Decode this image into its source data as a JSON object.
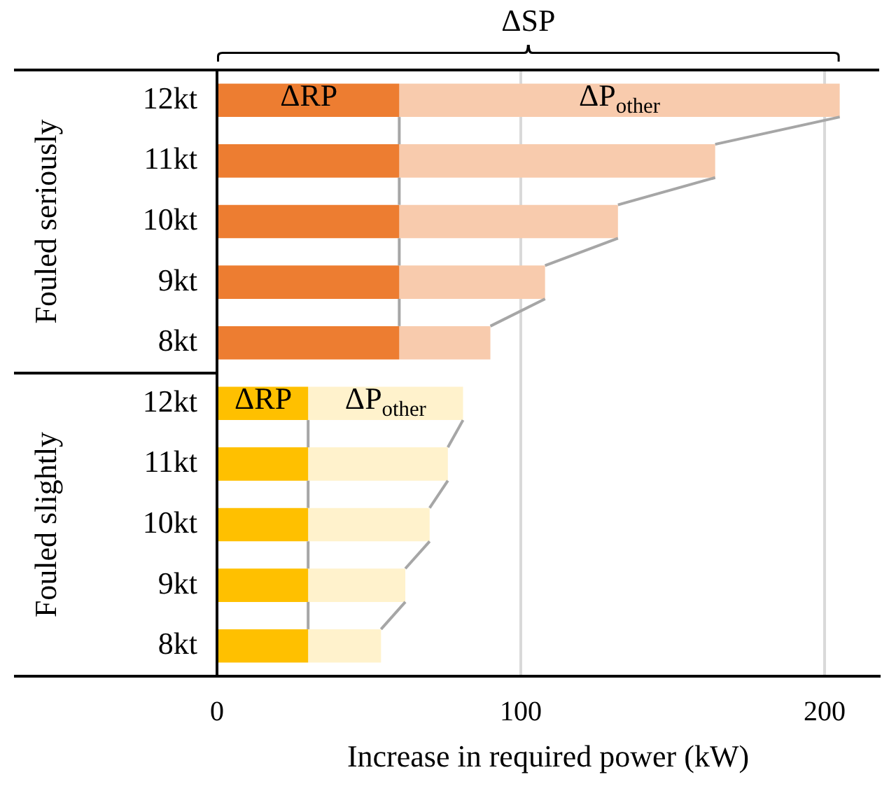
{
  "chart_data": {
    "type": "bar",
    "orientation": "horizontal",
    "stacked": true,
    "categories": [
      "12kt",
      "11kt",
      "10kt",
      "9kt",
      "8kt",
      "12kt",
      "11kt",
      "10kt",
      "9kt",
      "8kt"
    ],
    "series": [
      {
        "name": "ΔRP",
        "colors": [
          "#ed7d31",
          "#ed7d31",
          "#ed7d31",
          "#ed7d31",
          "#ed7d31",
          "#ffc000",
          "#ffc000",
          "#ffc000",
          "#ffc000",
          "#ffc000"
        ],
        "values": [
          60,
          60,
          60,
          60,
          60,
          30,
          30,
          30,
          30,
          30
        ]
      },
      {
        "name": "ΔP$_{other}$",
        "colors": [
          "#f8cbad",
          "#f8cbad",
          "#f8cbad",
          "#f8cbad",
          "#f8cbad",
          "#fff2cc",
          "#fff2cc",
          "#fff2cc",
          "#fff2cc",
          "#fff2cc"
        ],
        "values": [
          145,
          104,
          72,
          48,
          30,
          51,
          46,
          40,
          32,
          24
        ]
      }
    ],
    "xlabel": "Increase in required power (kW)",
    "xlim": [
      0,
      218
    ],
    "xticks": [
      0,
      100,
      200
    ],
    "grid": "x",
    "legend": false,
    "annotations": [
      "ΔSP",
      "Fouled seriously",
      "Fouled slightly"
    ]
  }
}
